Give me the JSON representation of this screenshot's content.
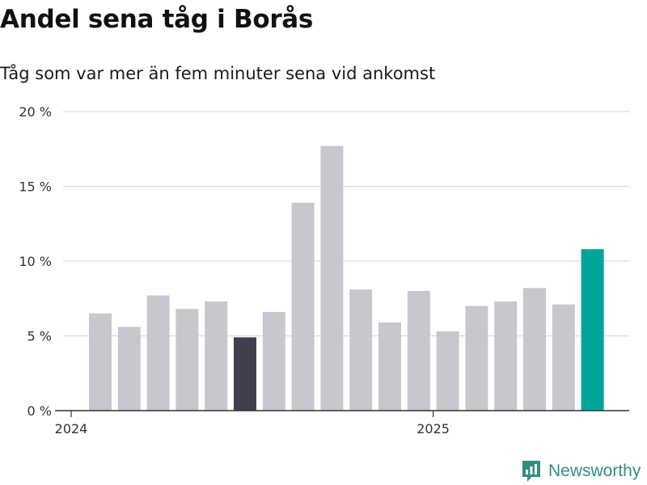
{
  "header": {
    "title": "Andel sena tåg i Borås",
    "subtitle": "Tåg som var mer än fem minuter sena vid ankomst"
  },
  "brand": {
    "name": "Newsworthy",
    "icon": "bar-chart-logo-icon",
    "color": "#2f8f83"
  },
  "colors": {
    "default_bar": "#c8c7cd",
    "highlight_bar": "#403f4d",
    "latest_bar": "#00a698",
    "grid": "#dcdcdc",
    "axis": "#333333"
  },
  "chart_data": {
    "type": "bar",
    "title": "Andel sena tåg i Borås",
    "subtitle": "Tåg som var mer än fem minuter sena vid ankomst",
    "x": [
      "2024-01",
      "2024-02",
      "2024-03",
      "2024-04",
      "2024-05",
      "2024-06",
      "2024-07",
      "2024-08",
      "2024-09",
      "2024-10",
      "2024-11",
      "2024-12",
      "2025-01",
      "2025-02",
      "2025-03",
      "2025-04",
      "2025-05",
      "2025-06"
    ],
    "values": [
      6.5,
      5.6,
      7.7,
      6.8,
      7.3,
      4.9,
      6.6,
      13.9,
      17.7,
      8.1,
      5.9,
      8.0,
      5.3,
      7.0,
      7.3,
      8.2,
      7.1,
      10.8
    ],
    "highlight": {
      "2024-06": "highlight_bar",
      "2025-06": "latest_bar"
    },
    "ylim": [
      0,
      20
    ],
    "yticks": [
      {
        "value": 0,
        "label": "0 %"
      },
      {
        "value": 5,
        "label": "5 %"
      },
      {
        "value": 10,
        "label": "10 %"
      },
      {
        "value": 15,
        "label": "15 %"
      },
      {
        "value": 20,
        "label": "20 %"
      }
    ],
    "xticks": [
      {
        "at": "2024-01",
        "label": "2024"
      },
      {
        "at": "2025-01",
        "label": "2025"
      }
    ],
    "grid": true,
    "legend": "none"
  }
}
